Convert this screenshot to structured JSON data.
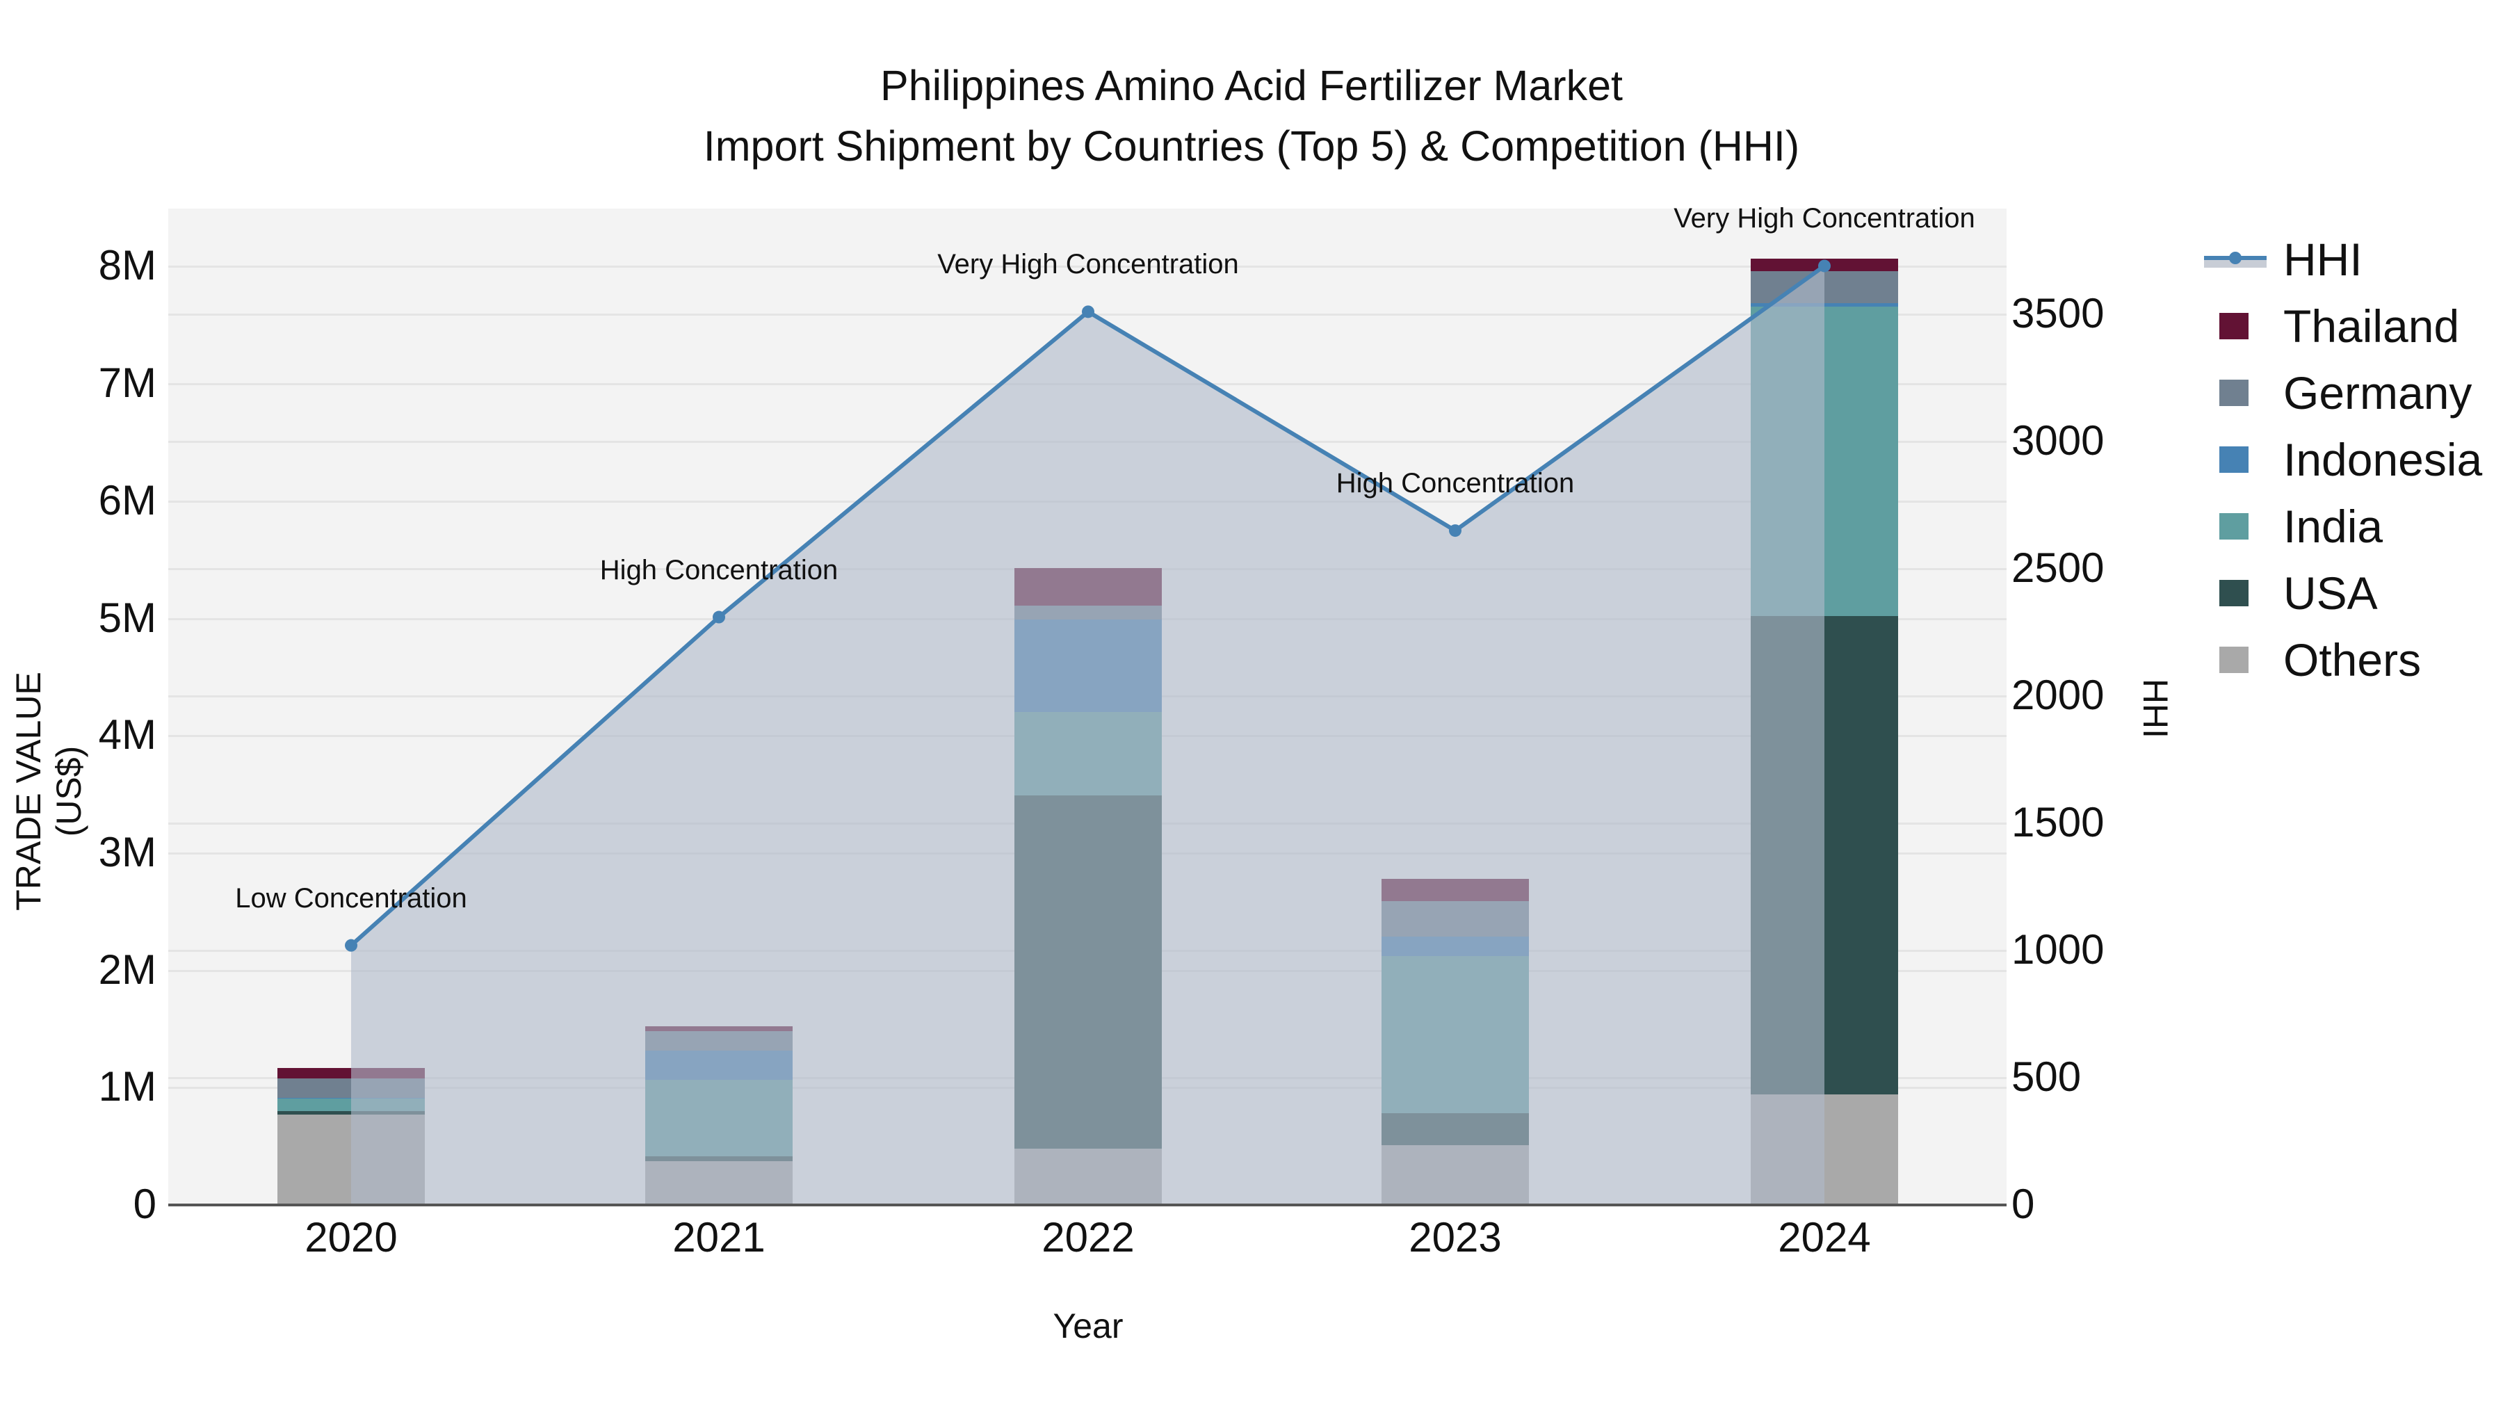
{
  "title": {
    "line1": "Philippines Amino Acid Fertilizer Market",
    "line2": "Import Shipment by Countries (Top 5) & Competition (HHI)"
  },
  "axes": {
    "x_title": "Year",
    "y_left_title": "TRADE VALUE (US$)",
    "y_right_title": "HHI",
    "y_left_ticks": [
      "0",
      "1M",
      "2M",
      "3M",
      "4M",
      "5M",
      "6M",
      "7M",
      "8M"
    ],
    "y_right_ticks": [
      "0",
      "500",
      "1000",
      "1500",
      "2000",
      "2500",
      "3000",
      "3500"
    ],
    "x_ticks": [
      "2020",
      "2021",
      "2022",
      "2023",
      "2024"
    ]
  },
  "legend": {
    "items": [
      {
        "label": "HHI",
        "type": "line",
        "color": "#4682b4"
      },
      {
        "label": "Thailand",
        "type": "bar",
        "color": "#621234"
      },
      {
        "label": "Germany",
        "type": "bar",
        "color": "#708090"
      },
      {
        "label": "Indonesia",
        "type": "bar",
        "color": "#4682b4"
      },
      {
        "label": "India",
        "type": "bar",
        "color": "#5f9ea0"
      },
      {
        "label": "USA",
        "type": "bar",
        "color": "#2f4f4f"
      },
      {
        "label": "Others",
        "type": "bar",
        "color": "#a9a9a9"
      }
    ]
  },
  "annotations": [
    {
      "year": "2020",
      "text": "Low Concentration"
    },
    {
      "year": "2021",
      "text": "High Concentration"
    },
    {
      "year": "2022",
      "text": "Very High Concentration"
    },
    {
      "year": "2023",
      "text": "High Concentration"
    },
    {
      "year": "2024",
      "text": "Very High Concentration"
    }
  ],
  "chart_data": {
    "type": "bar",
    "subtype": "stacked bar + line (dual axis)",
    "title": "Philippines Amino Acid Fertilizer Market — Import Shipment by Countries (Top 5) & Competition (HHI)",
    "xlabel": "Year",
    "ylabel": "TRADE VALUE (US$)",
    "y2label": "HHI",
    "categories": [
      "2020",
      "2021",
      "2022",
      "2023",
      "2024"
    ],
    "ylim": [
      0,
      8500000
    ],
    "y2lim": [
      0,
      3900
    ],
    "grid": true,
    "legend_position": "right",
    "series": [
      {
        "name": "Others",
        "type": "bar",
        "axis": "left",
        "color": "#a9a9a9",
        "values": [
          770000,
          375000,
          480000,
          510000,
          940000
        ]
      },
      {
        "name": "USA",
        "type": "bar",
        "axis": "left",
        "color": "#2f4f4f",
        "values": [
          30000,
          40000,
          3010000,
          270000,
          4080000
        ]
      },
      {
        "name": "India",
        "type": "bar",
        "axis": "left",
        "color": "#5f9ea0",
        "values": [
          110000,
          650000,
          710000,
          1340000,
          2640000
        ]
      },
      {
        "name": "Indonesia",
        "type": "bar",
        "axis": "left",
        "color": "#4682b4",
        "values": [
          5000,
          250000,
          790000,
          170000,
          30000
        ]
      },
      {
        "name": "Germany",
        "type": "bar",
        "axis": "left",
        "color": "#708090",
        "values": [
          165000,
          165000,
          120000,
          300000,
          270000
        ]
      },
      {
        "name": "Thailand",
        "type": "bar",
        "axis": "left",
        "color": "#621234",
        "values": [
          90000,
          45000,
          320000,
          190000,
          110000
        ]
      },
      {
        "name": "HHI",
        "type": "line",
        "axis": "right",
        "color": "#4682b4",
        "fill": "tozeroy",
        "values": [
          1020,
          2310,
          3510,
          2650,
          3690
        ]
      }
    ],
    "annotations": [
      "Low Concentration",
      "High Concentration",
      "Very High Concentration",
      "High Concentration",
      "Very High Concentration"
    ]
  }
}
